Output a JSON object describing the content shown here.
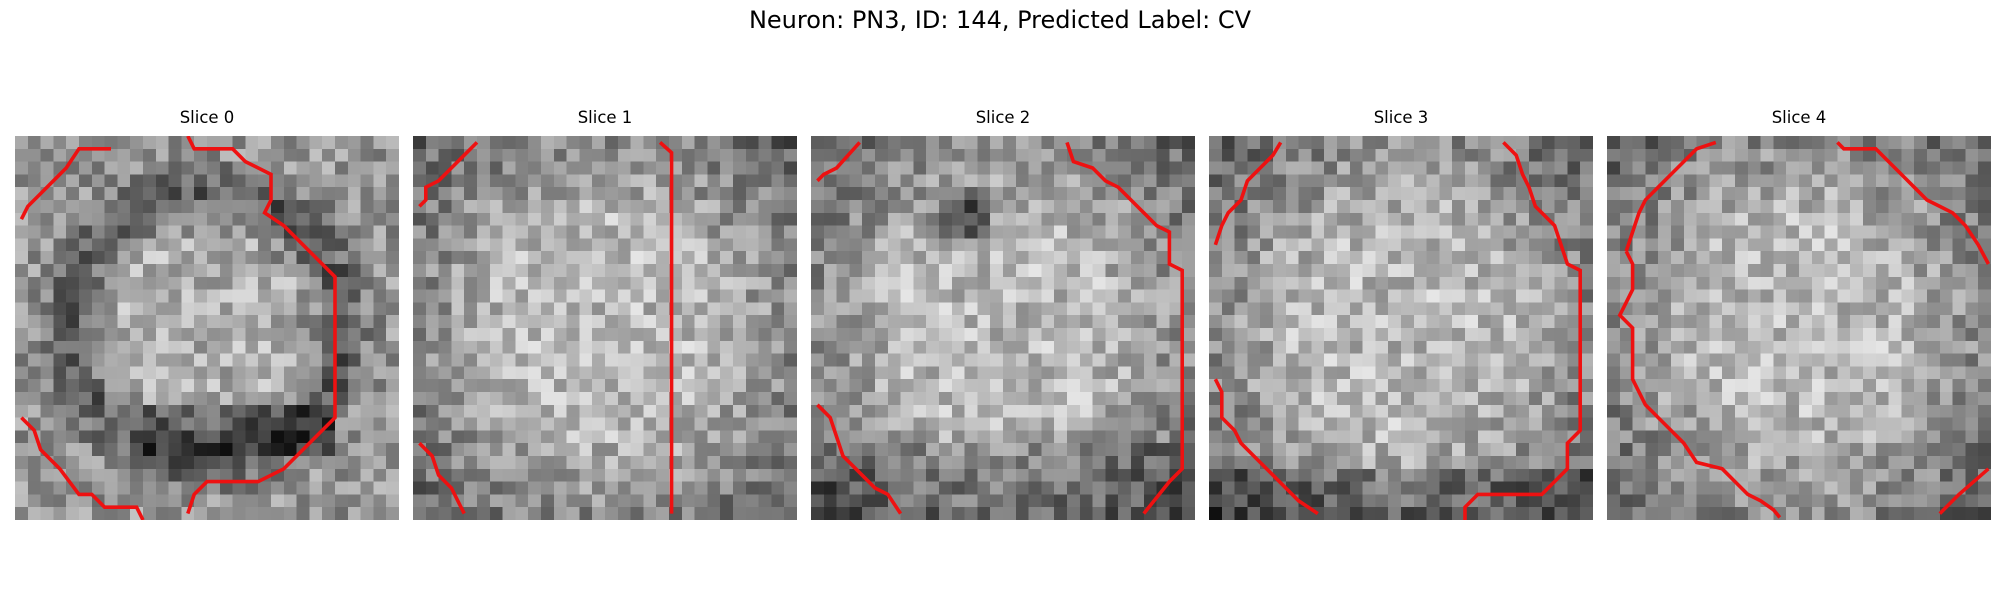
{
  "figure": {
    "title": "Neuron: PN3, ID: 144, Predicted Label: CV"
  },
  "panels": [
    {
      "title": "Slice 0"
    },
    {
      "title": "Slice 1"
    },
    {
      "title": "Slice 2"
    },
    {
      "title": "Slice 3"
    },
    {
      "title": "Slice 4"
    }
  ],
  "colors": {
    "contour": "#ee1111"
  }
}
